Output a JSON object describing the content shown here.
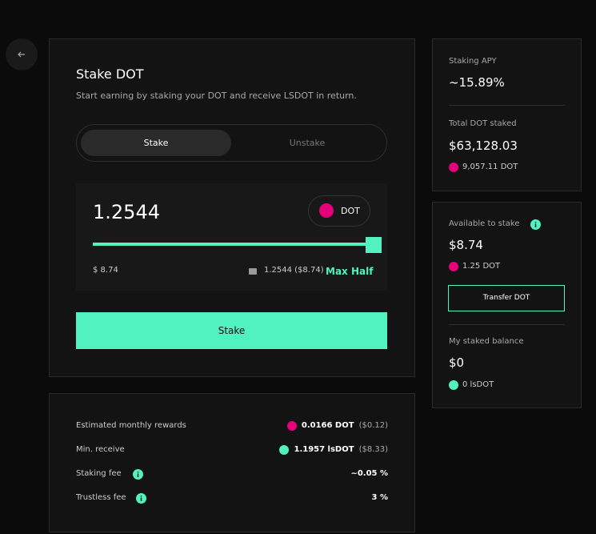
{
  "stake_panel": {
    "title": "Stake DOT",
    "subtitle": "Start earning by staking your DOT and receive LSDOT in return.",
    "tabs": [
      "Stake",
      "Unstake"
    ],
    "amount": "1.2544",
    "token": "DOT",
    "usd_value": "$ 8.74",
    "balance": "1.2544 ($8.74)",
    "max": "Max",
    "half": "Half",
    "button": "Stake"
  },
  "details": {
    "rows": [
      {
        "label": "Estimated monthly rewards",
        "value": "0.0166 DOT",
        "secondary": "($0.12)"
      },
      {
        "label": "Min. receive",
        "value": "1.1957 lsDOT",
        "secondary": "($8.33)"
      },
      {
        "label": "Staking fee",
        "value": "~0.05 %"
      },
      {
        "label": "Trustless fee",
        "value": "3 %"
      }
    ]
  },
  "stats": {
    "apy_label": "Staking APY",
    "apy_value": "~15.89%",
    "total_label": "Total DOT staked",
    "total_value": "$63,128.03",
    "total_sub": "9,057.11 DOT"
  },
  "wallet": {
    "available_label": "Available to stake",
    "available_value": "$8.74",
    "available_sub": "1.25 DOT",
    "button": "Transfer DOT",
    "staked_label": "My staked balance",
    "staked_value": "$0",
    "staked_sub": "0 lsDOT"
  }
}
